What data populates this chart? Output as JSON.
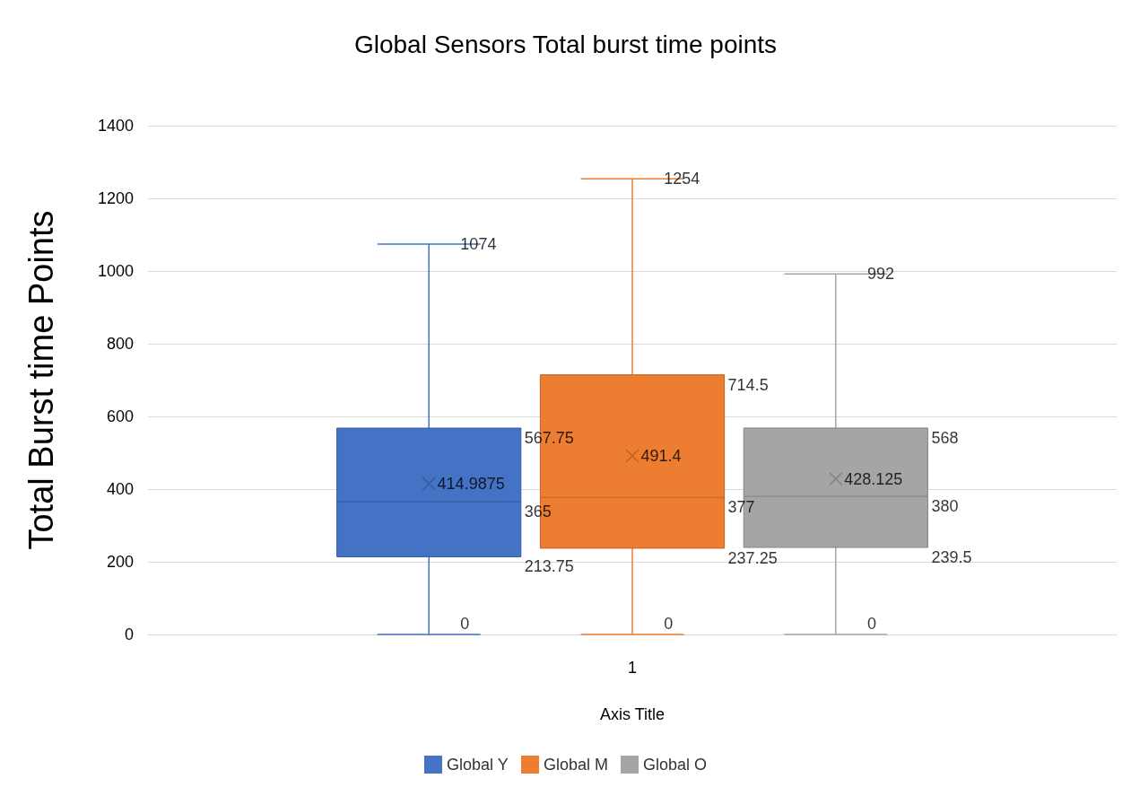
{
  "chart_data": {
    "type": "box",
    "title": "Global Sensors Total burst time points",
    "xlabel": "Axis Title",
    "ylabel": "Total Burst time Points",
    "categories": [
      "1"
    ],
    "series": [
      {
        "name": "Global Y",
        "color": "#4472c4",
        "boxes": [
          {
            "low": 0,
            "q1": 213.75,
            "median": 365,
            "q3": 567.75,
            "high": 1074,
            "mean": 414.9875
          }
        ]
      },
      {
        "name": "Global M",
        "color": "#ed7d31",
        "boxes": [
          {
            "low": 0,
            "q1": 237.25,
            "median": 377,
            "q3": 714.5,
            "high": 1254,
            "mean": 491.4
          }
        ]
      },
      {
        "name": "Global O",
        "color": "#a5a5a5",
        "boxes": [
          {
            "low": 0,
            "q1": 239.5,
            "median": 380,
            "q3": 568,
            "high": 992,
            "mean": 428.125
          }
        ]
      }
    ],
    "annotations": [
      "1074",
      "567.75",
      "365",
      "213.75",
      "0",
      "414.9875",
      "1254",
      "714.5",
      "377",
      "237.25",
      "0",
      "491.4",
      "992",
      "568",
      "380",
      "239.5",
      "0",
      "428.125"
    ],
    "ylim": [
      0,
      1400
    ],
    "yticks": [
      0,
      200,
      400,
      600,
      800,
      1000,
      1200,
      1400
    ],
    "grid": "y",
    "legend": "bottom",
    "marker": "cross"
  }
}
